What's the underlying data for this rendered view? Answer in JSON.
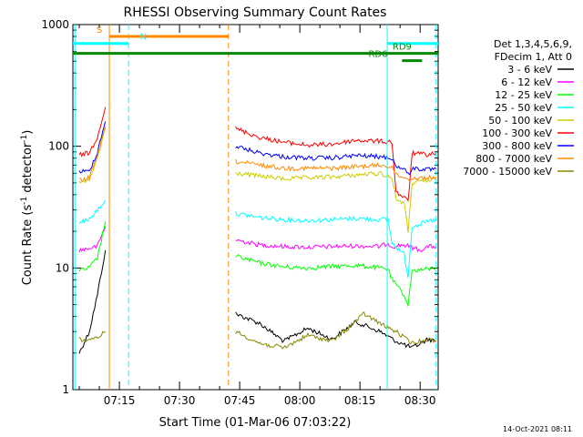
{
  "chart_data": {
    "type": "line",
    "title": "RHESSI Observing Summary Count Rates",
    "xlabel": "Start Time (01-Mar-06 07:03:22)",
    "ylabel_parts": [
      "Count Rate (s",
      "-1",
      " detector",
      "-1",
      ")"
    ],
    "yscale": "log",
    "ylim": [
      1,
      1000
    ],
    "xlim_minutes": [
      3.4,
      94.5
    ],
    "x_ticks": [
      {
        "minute": 15,
        "label": "07:15"
      },
      {
        "minute": 30,
        "label": "07:30"
      },
      {
        "minute": 45,
        "label": "07:45"
      },
      {
        "minute": 60,
        "label": "08:00"
      },
      {
        "minute": 75,
        "label": "08:15"
      },
      {
        "minute": 90,
        "label": "08:30"
      }
    ],
    "y_ticks": [
      {
        "value": 1,
        "label": "1"
      },
      {
        "value": 10,
        "label": "10"
      },
      {
        "value": 100,
        "label": "100"
      },
      {
        "value": 1000,
        "label": "1000"
      }
    ],
    "legend": {
      "header": [
        "Det 1,3,4,5,6,9,",
        "FDecim 1, Att 0"
      ],
      "position": "right"
    },
    "series": [
      {
        "name": "3 - 6 keV",
        "color": "#000000",
        "segments": [
          [
            [
              5,
              2
            ],
            [
              7.5,
              3
            ],
            [
              9.5,
              6
            ],
            [
              11.5,
              14
            ]
          ],
          [
            [
              44,
              4.2
            ],
            [
              50,
              3.5
            ],
            [
              56,
              2.5
            ],
            [
              62,
              3.2
            ],
            [
              68,
              2.6
            ],
            [
              74,
              3.6
            ],
            [
              80,
              3.0
            ],
            [
              84,
              2.5
            ],
            [
              88,
              2.2
            ],
            [
              92,
              2.6
            ],
            [
              94,
              2.5
            ]
          ]
        ]
      },
      {
        "name": "6 - 12 keV",
        "color": "#ff00ff",
        "segments": [
          [
            [
              5,
              14
            ],
            [
              7.5,
              14.5
            ],
            [
              9.5,
              15
            ],
            [
              11.5,
              22
            ]
          ],
          [
            [
              44,
              17
            ],
            [
              50,
              15.5
            ],
            [
              56,
              15
            ],
            [
              62,
              14.8
            ],
            [
              68,
              15
            ],
            [
              74,
              15.2
            ],
            [
              80,
              15
            ],
            [
              82,
              16
            ],
            [
              83,
              15
            ],
            [
              86,
              15.5
            ],
            [
              90,
              14
            ],
            [
              92,
              15
            ],
            [
              94,
              15
            ]
          ]
        ]
      },
      {
        "name": "12 - 25 keV",
        "color": "#00ff00",
        "segments": [
          [
            [
              5,
              9.5
            ],
            [
              7.5,
              10
            ],
            [
              9.5,
              12
            ],
            [
              11.5,
              24
            ]
          ],
          [
            [
              44,
              12.5
            ],
            [
              50,
              11
            ],
            [
              56,
              10.2
            ],
            [
              62,
              10
            ],
            [
              68,
              10.3
            ],
            [
              74,
              10.5
            ],
            [
              80,
              10
            ],
            [
              82,
              9.8
            ],
            [
              83,
              8
            ],
            [
              86,
              6
            ],
            [
              87,
              5
            ],
            [
              88,
              9.5
            ],
            [
              92,
              9.8
            ],
            [
              94,
              10
            ]
          ]
        ]
      },
      {
        "name": "25 - 50 keV",
        "color": "#00ffff",
        "segments": [
          [
            [
              5,
              24
            ],
            [
              7.5,
              25
            ],
            [
              9.5,
              30
            ],
            [
              11.5,
              36
            ]
          ],
          [
            [
              44,
              28
            ],
            [
              50,
              26
            ],
            [
              56,
              25
            ],
            [
              62,
              24.5
            ],
            [
              68,
              25
            ],
            [
              74,
              25.5
            ],
            [
              80,
              25
            ],
            [
              82,
              25
            ],
            [
              83,
              16
            ],
            [
              86,
              13
            ],
            [
              87,
              8.5
            ],
            [
              88,
              22
            ],
            [
              92,
              24
            ],
            [
              94,
              25
            ]
          ]
        ]
      },
      {
        "name": "50 - 100 keV",
        "color": "#cccc00",
        "segments": [
          [
            [
              5,
              50
            ],
            [
              7.5,
              52
            ],
            [
              9.5,
              80
            ],
            [
              11.5,
              140
            ]
          ],
          [
            [
              44,
              60
            ],
            [
              50,
              57
            ],
            [
              56,
              54
            ],
            [
              62,
              55
            ],
            [
              68,
              56
            ],
            [
              74,
              58
            ],
            [
              80,
              60
            ],
            [
              83,
              55
            ],
            [
              84,
              37
            ],
            [
              86,
              34
            ],
            [
              87,
              20
            ],
            [
              88,
              50
            ],
            [
              92,
              52
            ],
            [
              94,
              53
            ]
          ]
        ]
      },
      {
        "name": "100 - 300 keV",
        "color": "#ff0000",
        "segments": [
          [
            [
              5,
              85
            ],
            [
              7.5,
              88
            ],
            [
              9.5,
              120
            ],
            [
              11.5,
              210
            ]
          ],
          [
            [
              44,
              140
            ],
            [
              50,
              118
            ],
            [
              56,
              108
            ],
            [
              62,
              102
            ],
            [
              68,
              104
            ],
            [
              74,
              112
            ],
            [
              80,
              110
            ],
            [
              83,
              108
            ],
            [
              84,
              42
            ],
            [
              86,
              38
            ],
            [
              87,
              35
            ],
            [
              88,
              88
            ],
            [
              92,
              85
            ],
            [
              94,
              88
            ]
          ]
        ]
      },
      {
        "name": "300 - 800 keV",
        "color": "#0000ff",
        "segments": [
          [
            [
              5,
              62
            ],
            [
              7.5,
              62
            ],
            [
              9.5,
              90
            ],
            [
              11.5,
              160
            ]
          ],
          [
            [
              44,
              100
            ],
            [
              50,
              88
            ],
            [
              56,
              82
            ],
            [
              62,
              80
            ],
            [
              68,
              80
            ],
            [
              74,
              84
            ],
            [
              80,
              82
            ],
            [
              83,
              80
            ],
            [
              84,
              68
            ],
            [
              86,
              66
            ],
            [
              87,
              58
            ],
            [
              88,
              66
            ],
            [
              92,
              64
            ],
            [
              94,
              65
            ]
          ]
        ]
      },
      {
        "name": "800 - 7000 keV",
        "color": "#ff8800",
        "segments": [
          [
            [
              5,
              52
            ],
            [
              7.5,
              55
            ],
            [
              9.5,
              82
            ],
            [
              11.5,
              145
            ]
          ],
          [
            [
              44,
              75
            ],
            [
              50,
              70
            ],
            [
              56,
              66
            ],
            [
              62,
              66
            ],
            [
              68,
              66
            ],
            [
              74,
              68
            ],
            [
              80,
              70
            ],
            [
              83,
              68
            ],
            [
              84,
              58
            ],
            [
              86,
              56
            ],
            [
              87,
              53
            ],
            [
              88,
              55
            ],
            [
              92,
              55
            ],
            [
              94,
              56
            ]
          ]
        ]
      },
      {
        "name": "7000 - 15000 keV",
        "color": "#888800",
        "segments": [
          [
            [
              5,
              2.6
            ],
            [
              7.5,
              2.5
            ],
            [
              9.5,
              2.7
            ],
            [
              11.5,
              3
            ]
          ],
          [
            [
              44,
              3
            ],
            [
              50,
              2.4
            ],
            [
              56,
              2.2
            ],
            [
              62,
              2.8
            ],
            [
              68,
              2.5
            ],
            [
              72,
              3.2
            ],
            [
              76,
              4.2
            ],
            [
              80,
              3.5
            ],
            [
              84,
              3.0
            ],
            [
              88,
              2.4
            ],
            [
              92,
              2.6
            ],
            [
              94,
              2.5
            ]
          ]
        ]
      }
    ],
    "vertical_lines": [
      {
        "minute": 12.5,
        "color": "#ff8800",
        "style": "solid"
      },
      {
        "minute": 42.2,
        "color": "#ff8800",
        "style": "dashed"
      },
      {
        "minute": 3.9,
        "color": "#00ffff",
        "style": "solid"
      },
      {
        "minute": 17.3,
        "color": "#00ffff",
        "style": "dashed"
      },
      {
        "minute": 81.8,
        "color": "#00ffff",
        "style": "solid"
      },
      {
        "minute": 94.0,
        "color": "#00ffff",
        "style": "dashed"
      }
    ],
    "flag_bars": [
      {
        "label": "S",
        "color": "#ff8800",
        "y_value": 800,
        "label_minute": 10,
        "segments": [
          [
            12.5,
            42.2
          ]
        ]
      },
      {
        "label": "N",
        "color": "#00ffff",
        "y_value": 700,
        "label_minute": 21,
        "segments": [
          [
            3.4,
            17.3
          ],
          [
            81.8,
            94.5
          ]
        ]
      },
      {
        "label": "RD9",
        "color": "#008800",
        "y_value": 580,
        "label_minute": 85.5,
        "segments": [
          [
            3.4,
            94.5
          ]
        ]
      },
      {
        "label": "RD6",
        "color": "#008800",
        "y_value": 505,
        "label_minute": 79.5,
        "segments": [
          [
            85.5,
            90.5
          ]
        ]
      }
    ],
    "timestamp": "14-Oct-2021 08:11"
  }
}
